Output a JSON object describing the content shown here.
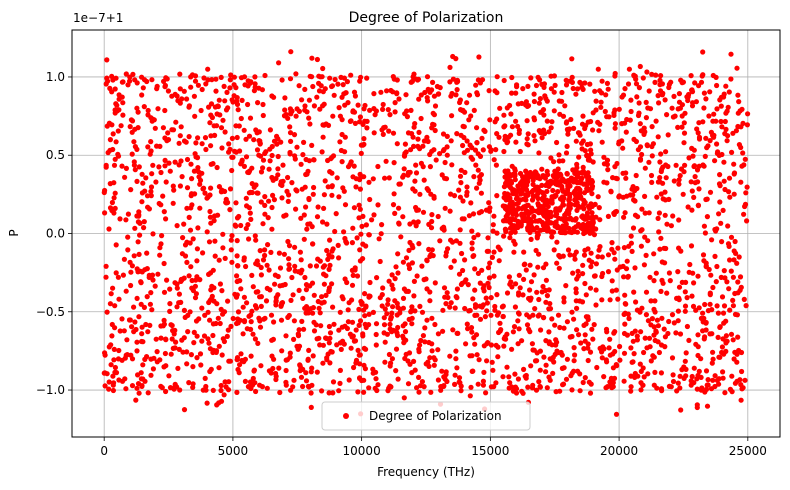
{
  "chart_data": {
    "type": "scatter",
    "title": "Degree of Polarization",
    "xlabel": "Frequency (THz)",
    "ylabel": "P",
    "offset_text": "1e−7+1",
    "xlim": [
      -1250,
      26250
    ],
    "ylim": [
      -1.3,
      1.3
    ],
    "x_ticks": [
      0,
      5000,
      10000,
      15000,
      20000,
      25000
    ],
    "x_tick_labels": [
      "0",
      "5000",
      "10000",
      "15000",
      "20000",
      "25000"
    ],
    "y_ticks": [
      -1.0,
      -0.5,
      0.0,
      0.5,
      1.0
    ],
    "y_tick_labels": [
      "−1.0",
      "−0.5",
      "0.0",
      "0.5",
      "1.0"
    ],
    "grid": true,
    "legend": {
      "placement": "lower center"
    },
    "series": [
      {
        "name": "Degree of Polarization",
        "color": "#ff0000",
        "x": [
          0,
          25000
        ],
        "y_range": [
          -1.17,
          1.17
        ],
        "n_points": 3000,
        "dense_band": {
          "x": [
            15500,
            19000
          ],
          "y": [
            0.0,
            0.4
          ]
        }
      }
    ]
  }
}
